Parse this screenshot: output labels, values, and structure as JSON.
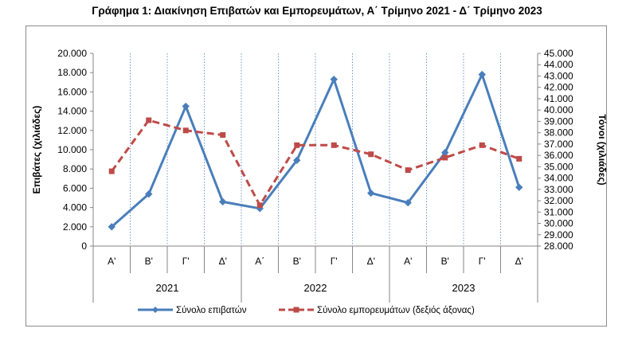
{
  "chart_data": {
    "type": "line",
    "title": "Γράφημα 1: Διακίνηση Επιβατών και Εμπορευμάτων, Α΄ Τρίμηνο 2021 - Δ΄ Τρίμηνο 2023",
    "quarters": [
      "Α'",
      "Β'",
      "Γ'",
      "Δ'",
      "Α΄",
      "Β'",
      "Γ'",
      "Δ'",
      "Α'",
      "Β'",
      "Γ'",
      "Δ'"
    ],
    "years": [
      {
        "label": "2021",
        "span": 4
      },
      {
        "label": "2022",
        "span": 4
      },
      {
        "label": "2023",
        "span": 4
      }
    ],
    "ylabel_left": "Επιβάτες  (χιλιάδες)",
    "ylabel_right": "Τόνοι  (χιλιάδες)",
    "ylim_left": [
      0,
      20000
    ],
    "ylim_right": [
      28000,
      45000
    ],
    "yticks_left": [
      "0",
      "2.000",
      "4.000",
      "6.000",
      "8.000",
      "10.000",
      "12.000",
      "14.000",
      "16.000",
      "18.000",
      "20.000"
    ],
    "yticks_right": [
      "28.000",
      "29.000",
      "30.000",
      "31.000",
      "32.000",
      "33.000",
      "34.000",
      "35.000",
      "36.000",
      "37.000",
      "38.000",
      "39.000",
      "40.000",
      "41.000",
      "42.000",
      "43.000",
      "44.000",
      "45.000"
    ],
    "legend_position": "bottom",
    "grid": "vertical dotted",
    "series": [
      {
        "name": "Σύνολο επιβατών",
        "axis": "left",
        "color": "#4a7ebb",
        "style": "solid",
        "marker": "diamond",
        "values": [
          2000,
          5400,
          14500,
          4600,
          3900,
          8900,
          17300,
          5500,
          4500,
          9700,
          17800,
          6100
        ]
      },
      {
        "name": "Σύνολο εμπορευμάτων (δεξιός άξονας)",
        "axis": "right",
        "color": "#be4b48",
        "style": "dashed",
        "marker": "square",
        "values": [
          34600,
          39100,
          38200,
          37800,
          31600,
          36900,
          36900,
          36100,
          34700,
          35800,
          36900,
          35700
        ]
      }
    ]
  }
}
